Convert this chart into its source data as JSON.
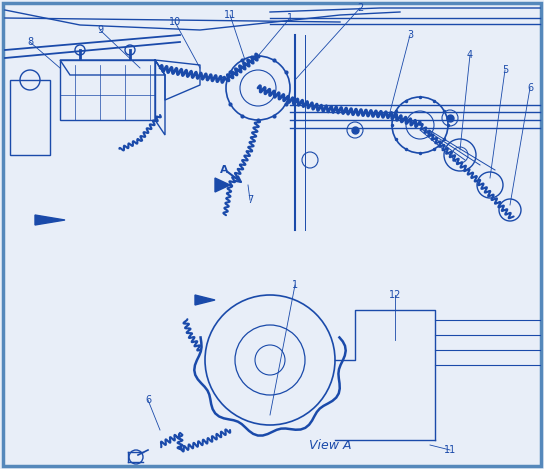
{
  "bg": "#e8eef8",
  "fg": "#1a4aaa",
  "border": "#5588bb",
  "figsize": [
    5.44,
    4.69
  ],
  "dpi": 100
}
